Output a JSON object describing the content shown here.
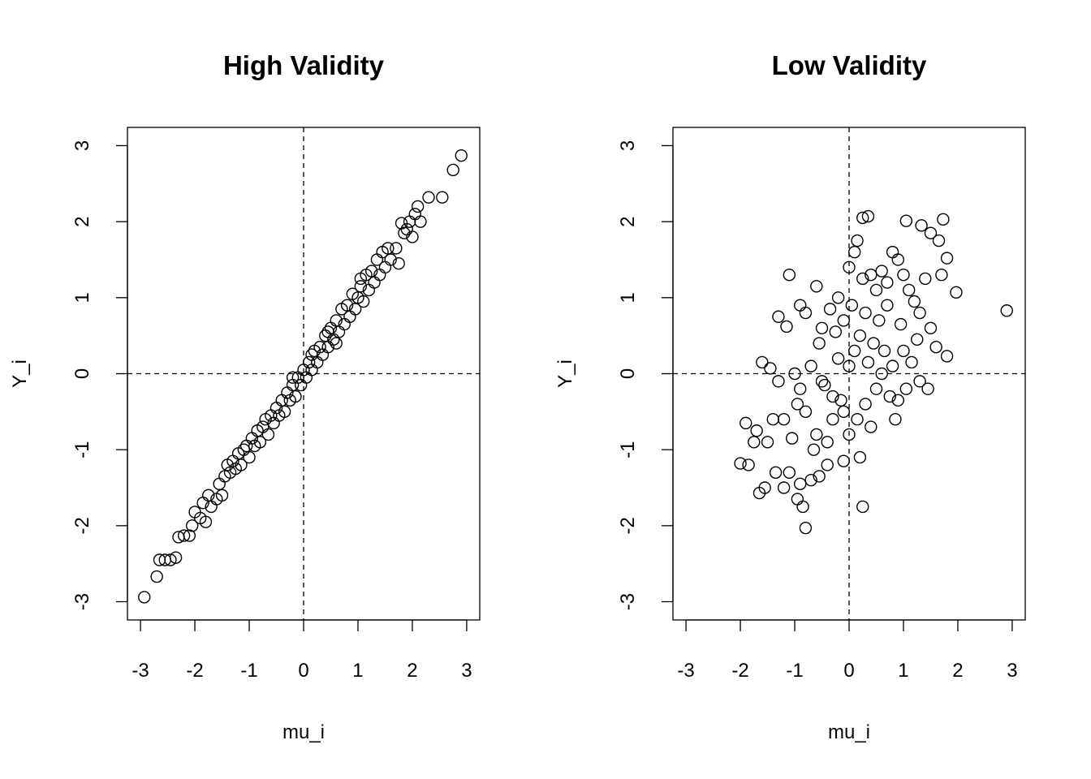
{
  "chart_data": [
    {
      "type": "scatter",
      "title": "High Validity",
      "xlabel": "mu_i",
      "ylabel": "Y_i",
      "xlim": [
        -3.24,
        3.24
      ],
      "ylim": [
        -3.24,
        3.24
      ],
      "xticks": [
        "-3",
        "-2",
        "-1",
        "0",
        "1",
        "2",
        "3"
      ],
      "yticks": [
        "-3",
        "-2",
        "-1",
        "0",
        "1",
        "2",
        "3"
      ],
      "reference_lines": {
        "x": 0,
        "y": 0,
        "style": "dashed"
      },
      "points": [
        [
          -2.93,
          -2.94
        ],
        [
          -2.7,
          -2.67
        ],
        [
          -2.65,
          -2.45
        ],
        [
          -2.55,
          -2.45
        ],
        [
          -2.45,
          -2.45
        ],
        [
          -2.35,
          -2.42
        ],
        [
          -2.3,
          -2.15
        ],
        [
          -2.2,
          -2.13
        ],
        [
          -2.1,
          -2.13
        ],
        [
          -2.05,
          -2.0
        ],
        [
          -2.0,
          -1.82
        ],
        [
          -1.9,
          -1.9
        ],
        [
          -1.85,
          -1.7
        ],
        [
          -1.8,
          -1.95
        ],
        [
          -1.75,
          -1.6
        ],
        [
          -1.7,
          -1.75
        ],
        [
          -1.6,
          -1.65
        ],
        [
          -1.55,
          -1.45
        ],
        [
          -1.5,
          -1.6
        ],
        [
          -1.45,
          -1.35
        ],
        [
          -1.4,
          -1.2
        ],
        [
          -1.35,
          -1.3
        ],
        [
          -1.3,
          -1.15
        ],
        [
          -1.25,
          -1.25
        ],
        [
          -1.2,
          -1.05
        ],
        [
          -1.15,
          -1.2
        ],
        [
          -1.1,
          -1.0
        ],
        [
          -1.05,
          -0.95
        ],
        [
          -1.0,
          -1.1
        ],
        [
          -0.95,
          -0.85
        ],
        [
          -0.9,
          -0.95
        ],
        [
          -0.85,
          -0.75
        ],
        [
          -0.8,
          -0.9
        ],
        [
          -0.75,
          -0.7
        ],
        [
          -0.7,
          -0.6
        ],
        [
          -0.65,
          -0.8
        ],
        [
          -0.6,
          -0.55
        ],
        [
          -0.55,
          -0.65
        ],
        [
          -0.5,
          -0.45
        ],
        [
          -0.45,
          -0.55
        ],
        [
          -0.4,
          -0.35
        ],
        [
          -0.35,
          -0.5
        ],
        [
          -0.3,
          -0.25
        ],
        [
          -0.25,
          -0.35
        ],
        [
          -0.2,
          -0.15
        ],
        [
          -0.15,
          -0.3
        ],
        [
          -0.1,
          -0.05
        ],
        [
          -0.05,
          -0.15
        ],
        [
          0.0,
          0.05
        ],
        [
          0.05,
          -0.05
        ],
        [
          0.1,
          0.15
        ],
        [
          0.15,
          0.05
        ],
        [
          0.2,
          0.3
        ],
        [
          0.25,
          0.15
        ],
        [
          0.3,
          0.35
        ],
        [
          0.35,
          0.25
        ],
        [
          0.4,
          0.5
        ],
        [
          0.45,
          0.35
        ],
        [
          0.5,
          0.6
        ],
        [
          0.55,
          0.45
        ],
        [
          0.6,
          0.7
        ],
        [
          0.65,
          0.55
        ],
        [
          0.7,
          0.85
        ],
        [
          0.75,
          0.65
        ],
        [
          0.8,
          0.9
        ],
        [
          0.85,
          0.75
        ],
        [
          0.9,
          1.05
        ],
        [
          0.95,
          0.85
        ],
        [
          1.0,
          1.0
        ],
        [
          1.05,
          1.15
        ],
        [
          1.1,
          0.95
        ],
        [
          1.15,
          1.3
        ],
        [
          1.2,
          1.1
        ],
        [
          1.25,
          1.35
        ],
        [
          1.3,
          1.2
        ],
        [
          1.35,
          1.5
        ],
        [
          1.4,
          1.3
        ],
        [
          1.45,
          1.6
        ],
        [
          1.5,
          1.4
        ],
        [
          1.55,
          1.65
        ],
        [
          1.6,
          1.5
        ],
        [
          1.7,
          1.65
        ],
        [
          1.75,
          1.45
        ],
        [
          1.8,
          1.98
        ],
        [
          1.85,
          1.85
        ],
        [
          1.9,
          1.9
        ],
        [
          1.95,
          2.0
        ],
        [
          2.0,
          1.8
        ],
        [
          2.05,
          2.1
        ],
        [
          2.1,
          2.2
        ],
        [
          2.15,
          2.0
        ],
        [
          2.3,
          2.32
        ],
        [
          2.55,
          2.32
        ],
        [
          2.75,
          2.68
        ],
        [
          2.9,
          2.87
        ],
        [
          0.45,
          0.55
        ],
        [
          -0.2,
          -0.05
        ],
        [
          0.15,
          0.25
        ],
        [
          0.6,
          0.4
        ],
        [
          1.05,
          1.25
        ]
      ]
    },
    {
      "type": "scatter",
      "title": "Low Validity",
      "xlabel": "mu_i",
      "ylabel": "Y_i",
      "xlim": [
        -3.24,
        3.24
      ],
      "ylim": [
        -3.24,
        3.24
      ],
      "xticks": [
        "-3",
        "-2",
        "-1",
        "0",
        "1",
        "2",
        "3"
      ],
      "yticks": [
        "-3",
        "-2",
        "-1",
        "0",
        "1",
        "2",
        "3"
      ],
      "reference_lines": {
        "x": 0,
        "y": 0,
        "style": "dashed"
      },
      "points": [
        [
          2.9,
          0.83
        ],
        [
          1.97,
          1.07
        ],
        [
          1.73,
          2.03
        ],
        [
          1.05,
          2.01
        ],
        [
          1.33,
          1.95
        ],
        [
          0.25,
          2.05
        ],
        [
          0.35,
          2.07
        ],
        [
          -1.1,
          1.3
        ],
        [
          -1.9,
          -0.65
        ],
        [
          -2.0,
          -1.18
        ],
        [
          -1.85,
          -1.2
        ],
        [
          -0.8,
          -2.03
        ],
        [
          0.25,
          -1.75
        ],
        [
          -1.65,
          -1.57
        ],
        [
          -1.55,
          -1.5
        ],
        [
          1.8,
          0.23
        ],
        [
          1.8,
          1.52
        ],
        [
          1.5,
          1.85
        ],
        [
          1.65,
          1.75
        ],
        [
          1.7,
          1.3
        ],
        [
          -1.3,
          0.75
        ],
        [
          -1.15,
          0.62
        ],
        [
          -1.6,
          0.15
        ],
        [
          -1.45,
          0.07
        ],
        [
          -1.3,
          -0.1
        ],
        [
          -1.2,
          -0.6
        ],
        [
          -1.4,
          -0.6
        ],
        [
          -1.5,
          -0.9
        ],
        [
          -1.7,
          -0.75
        ],
        [
          -1.75,
          -0.9
        ],
        [
          -1.35,
          -1.3
        ],
        [
          -1.2,
          -1.5
        ],
        [
          -1.1,
          -1.3
        ],
        [
          -0.95,
          -1.65
        ],
        [
          -0.9,
          -1.45
        ],
        [
          -0.85,
          -1.75
        ],
        [
          -0.7,
          -1.4
        ],
        [
          -0.55,
          -1.35
        ],
        [
          -0.4,
          -1.2
        ],
        [
          -0.1,
          -1.15
        ],
        [
          -0.9,
          0.9
        ],
        [
          -0.8,
          0.8
        ],
        [
          -0.6,
          1.15
        ],
        [
          -0.5,
          0.6
        ],
        [
          -0.35,
          0.85
        ],
        [
          -0.2,
          1.0
        ],
        [
          -0.1,
          0.7
        ],
        [
          0.0,
          1.4
        ],
        [
          0.1,
          1.6
        ],
        [
          0.15,
          1.75
        ],
        [
          0.25,
          1.25
        ],
        [
          0.4,
          1.3
        ],
        [
          0.5,
          1.1
        ],
        [
          0.6,
          1.35
        ],
        [
          0.7,
          1.2
        ],
        [
          0.8,
          1.6
        ],
        [
          0.9,
          1.5
        ],
        [
          1.0,
          1.3
        ],
        [
          1.1,
          1.1
        ],
        [
          1.2,
          0.95
        ],
        [
          1.3,
          0.8
        ],
        [
          1.4,
          1.25
        ],
        [
          1.5,
          0.6
        ],
        [
          1.6,
          0.35
        ],
        [
          1.0,
          0.3
        ],
        [
          0.8,
          0.1
        ],
        [
          0.6,
          0.0
        ],
        [
          0.5,
          -0.2
        ],
        [
          0.3,
          -0.4
        ],
        [
          0.15,
          -0.6
        ],
        [
          0.0,
          -0.8
        ],
        [
          -0.1,
          -0.5
        ],
        [
          -0.3,
          -0.3
        ],
        [
          -0.5,
          -0.1
        ],
        [
          -0.7,
          0.1
        ],
        [
          -0.9,
          -0.2
        ],
        [
          -1.0,
          0.0
        ],
        [
          -0.8,
          -0.5
        ],
        [
          -0.6,
          -0.8
        ],
        [
          -0.4,
          -0.9
        ],
        [
          -0.2,
          0.2
        ],
        [
          0.0,
          0.1
        ],
        [
          0.1,
          0.3
        ],
        [
          0.2,
          0.5
        ],
        [
          0.35,
          0.15
        ],
        [
          0.45,
          0.4
        ],
        [
          0.55,
          0.7
        ],
        [
          0.65,
          0.3
        ],
        [
          0.75,
          -0.3
        ],
        [
          0.85,
          -0.6
        ],
        [
          0.9,
          -0.35
        ],
        [
          1.05,
          -0.2
        ],
        [
          1.15,
          0.15
        ],
        [
          1.3,
          -0.1
        ],
        [
          0.4,
          -0.7
        ],
        [
          0.2,
          -1.1
        ],
        [
          -0.3,
          -0.6
        ],
        [
          -0.55,
          0.4
        ],
        [
          -0.25,
          0.55
        ],
        [
          0.05,
          0.9
        ],
        [
          -1.05,
          -0.85
        ],
        [
          -0.95,
          -0.4
        ],
        [
          -0.65,
          -1.0
        ],
        [
          -0.45,
          -0.15
        ],
        [
          -0.15,
          -0.35
        ],
        [
          0.3,
          0.8
        ],
        [
          0.7,
          0.9
        ],
        [
          0.95,
          0.65
        ],
        [
          1.25,
          0.45
        ],
        [
          1.45,
          -0.2
        ]
      ]
    }
  ]
}
